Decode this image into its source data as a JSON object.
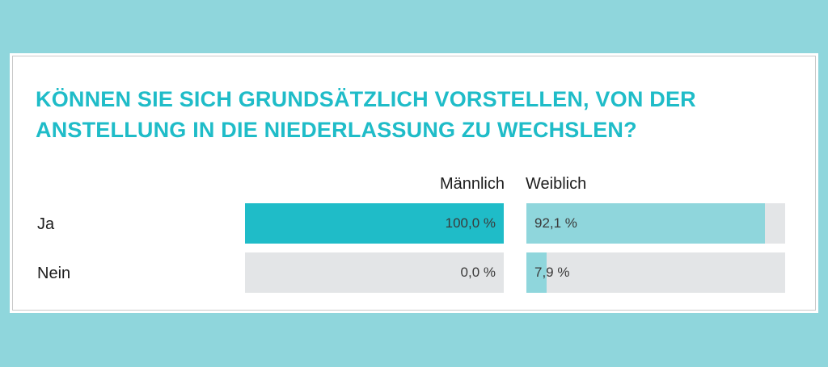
{
  "chart_data": {
    "type": "bar",
    "title": "KÖNNEN SIE SICH GRUNDSÄTZLICH VORSTELLEN, VON DER ANSTELLUNG IN DIE NIEDERLASSUNG ZU WECHSLEN?",
    "categories": [
      "Ja",
      "Nein"
    ],
    "series": [
      {
        "name": "Männlich",
        "values": [
          100.0,
          0.0
        ],
        "labels": [
          "100,0 %",
          "0,0 %"
        ],
        "color": "#1fbcc8"
      },
      {
        "name": "Weiblich",
        "values": [
          92.1,
          7.9
        ],
        "labels": [
          "92,1 %",
          "7,9 %"
        ],
        "color": "#8fd6dc"
      }
    ],
    "ylim": [
      0,
      100
    ],
    "track_color": "#e3e5e7"
  }
}
